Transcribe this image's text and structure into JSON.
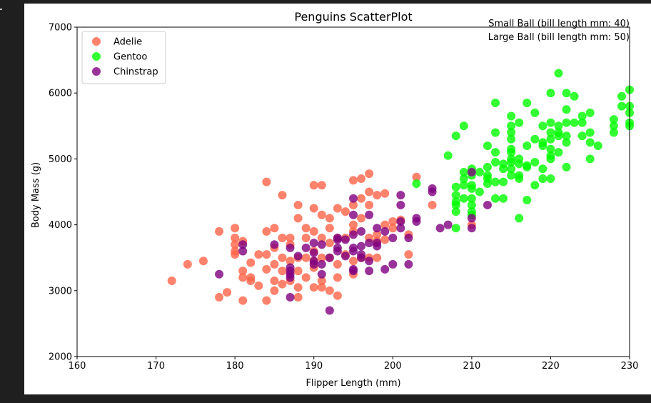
{
  "chart_data": {
    "type": "scatter",
    "title": "Penguins ScatterPlot",
    "xlabel": "Flipper Length (mm)",
    "ylabel": "Body Mass (g)",
    "xlim": [
      160,
      230
    ],
    "ylim": [
      2000,
      7000
    ],
    "xticks": [
      160,
      170,
      180,
      190,
      200,
      210,
      220,
      230
    ],
    "yticks": [
      2000,
      3000,
      4000,
      5000,
      6000,
      7000
    ],
    "grid": false,
    "legend_position": "top-left",
    "annotations": [
      "Small Ball (bill length mm: 40)",
      "Large Ball (bill length mm: 50)"
    ],
    "series": [
      {
        "name": "Adelie",
        "color": "#ff6347",
        "points": [
          [
            172,
            3150
          ],
          [
            174,
            3400
          ],
          [
            176,
            3450
          ],
          [
            178,
            2900
          ],
          [
            178,
            3900
          ],
          [
            179,
            2975
          ],
          [
            180,
            3550
          ],
          [
            180,
            3600
          ],
          [
            180,
            3700
          ],
          [
            180,
            3800
          ],
          [
            180,
            3950
          ],
          [
            181,
            2850
          ],
          [
            181,
            3200
          ],
          [
            181,
            3300
          ],
          [
            181,
            3750
          ],
          [
            182,
            3150
          ],
          [
            182,
            3200
          ],
          [
            182,
            3425
          ],
          [
            183,
            3075
          ],
          [
            183,
            3550
          ],
          [
            184,
            2850
          ],
          [
            184,
            3325
          ],
          [
            184,
            3550
          ],
          [
            184,
            3900
          ],
          [
            184,
            4650
          ],
          [
            185,
            3000
          ],
          [
            185,
            3150
          ],
          [
            185,
            3400
          ],
          [
            185,
            3650
          ],
          [
            185,
            3950
          ],
          [
            186,
            3100
          ],
          [
            186,
            3300
          ],
          [
            186,
            3500
          ],
          [
            186,
            3800
          ],
          [
            186,
            4450
          ],
          [
            187,
            3150
          ],
          [
            187,
            3450
          ],
          [
            187,
            3700
          ],
          [
            187,
            3800
          ],
          [
            188,
            2900
          ],
          [
            188,
            3050
          ],
          [
            188,
            3300
          ],
          [
            188,
            3500
          ],
          [
            188,
            4100
          ],
          [
            188,
            4300
          ],
          [
            189,
            3200
          ],
          [
            189,
            3500
          ],
          [
            189,
            3800
          ],
          [
            189,
            3950
          ],
          [
            190,
            3050
          ],
          [
            190,
            3350
          ],
          [
            190,
            3450
          ],
          [
            190,
            3600
          ],
          [
            190,
            3900
          ],
          [
            190,
            4250
          ],
          [
            190,
            4600
          ],
          [
            191,
            3050
          ],
          [
            191,
            3150
          ],
          [
            191,
            3500
          ],
          [
            191,
            3800
          ],
          [
            191,
            4150
          ],
          [
            191,
            4600
          ],
          [
            192,
            3000
          ],
          [
            192,
            3500
          ],
          [
            192,
            3725
          ],
          [
            192,
            3950
          ],
          [
            192,
            4100
          ],
          [
            193,
            2925
          ],
          [
            193,
            3200
          ],
          [
            193,
            3400
          ],
          [
            193,
            3800
          ],
          [
            193,
            4250
          ],
          [
            194,
            3550
          ],
          [
            194,
            3800
          ],
          [
            194,
            4200
          ],
          [
            195,
            3250
          ],
          [
            195,
            3450
          ],
          [
            195,
            3900
          ],
          [
            195,
            4000
          ],
          [
            195,
            4300
          ],
          [
            195,
            4675
          ],
          [
            196,
            3500
          ],
          [
            196,
            4100
          ],
          [
            196,
            4400
          ],
          [
            196,
            4700
          ],
          [
            197,
            3500
          ],
          [
            197,
            3800
          ],
          [
            197,
            4300
          ],
          [
            197,
            4500
          ],
          [
            197,
            4775
          ],
          [
            198,
            3500
          ],
          [
            198,
            3750
          ],
          [
            198,
            4450
          ],
          [
            198,
            3850
          ],
          [
            199,
            3775
          ],
          [
            199,
            4000
          ],
          [
            199,
            4475
          ],
          [
            200,
            3950
          ],
          [
            200,
            4050
          ],
          [
            201,
            4075
          ],
          [
            202,
            3550
          ],
          [
            202,
            3850
          ],
          [
            203,
            4725
          ],
          [
            205,
            4300
          ],
          [
            210,
            4000
          ]
        ]
      },
      {
        "name": "Gentoo",
        "color": "#00ff00",
        "points": [
          [
            203,
            4625
          ],
          [
            207,
            5050
          ],
          [
            208,
            3950
          ],
          [
            208,
            4200
          ],
          [
            208,
            4300
          ],
          [
            208,
            4350
          ],
          [
            208,
            4450
          ],
          [
            208,
            4575
          ],
          [
            208,
            5350
          ],
          [
            209,
            4400
          ],
          [
            209,
            4600
          ],
          [
            209,
            4700
          ],
          [
            209,
            4800
          ],
          [
            209,
            5500
          ],
          [
            210,
            4150
          ],
          [
            210,
            4200
          ],
          [
            210,
            4300
          ],
          [
            210,
            4400
          ],
          [
            210,
            4550
          ],
          [
            210,
            4600
          ],
          [
            210,
            4750
          ],
          [
            210,
            4850
          ],
          [
            211,
            4500
          ],
          [
            211,
            4800
          ],
          [
            212,
            4625
          ],
          [
            212,
            4700
          ],
          [
            212,
            4750
          ],
          [
            212,
            4875
          ],
          [
            212,
            5200
          ],
          [
            213,
            4400
          ],
          [
            213,
            4650
          ],
          [
            213,
            4950
          ],
          [
            213,
            5100
          ],
          [
            213,
            5400
          ],
          [
            213,
            5850
          ],
          [
            214,
            4400
          ],
          [
            214,
            4650
          ],
          [
            214,
            4850
          ],
          [
            214,
            4925
          ],
          [
            215,
            4750
          ],
          [
            215,
            4850
          ],
          [
            215,
            4950
          ],
          [
            215,
            5000
          ],
          [
            215,
            5100
          ],
          [
            215,
            5150
          ],
          [
            215,
            5300
          ],
          [
            215,
            5400
          ],
          [
            215,
            5500
          ],
          [
            215,
            5650
          ],
          [
            216,
            4100
          ],
          [
            216,
            4700
          ],
          [
            216,
            4750
          ],
          [
            216,
            4925
          ],
          [
            216,
            5000
          ],
          [
            216,
            5550
          ],
          [
            217,
            4375
          ],
          [
            217,
            4875
          ],
          [
            217,
            4900
          ],
          [
            217,
            5200
          ],
          [
            217,
            5850
          ],
          [
            218,
            4600
          ],
          [
            218,
            4950
          ],
          [
            218,
            5300
          ],
          [
            218,
            5700
          ],
          [
            219,
            4700
          ],
          [
            219,
            4850
          ],
          [
            219,
            5200
          ],
          [
            219,
            5250
          ],
          [
            219,
            5500
          ],
          [
            220,
            4700
          ],
          [
            220,
            5000
          ],
          [
            220,
            5050
          ],
          [
            220,
            5150
          ],
          [
            220,
            5300
          ],
          [
            220,
            5400
          ],
          [
            220,
            5550
          ],
          [
            220,
            6000
          ],
          [
            221,
            5100
          ],
          [
            221,
            5350
          ],
          [
            221,
            5400
          ],
          [
            221,
            5500
          ],
          [
            221,
            6300
          ],
          [
            222,
            4875
          ],
          [
            222,
            5250
          ],
          [
            222,
            5350
          ],
          [
            222,
            5550
          ],
          [
            222,
            5750
          ],
          [
            222,
            6000
          ],
          [
            223,
            5550
          ],
          [
            223,
            5950
          ],
          [
            224,
            5350
          ],
          [
            224,
            5550
          ],
          [
            224,
            5650
          ],
          [
            225,
            5000
          ],
          [
            225,
            5250
          ],
          [
            225,
            5400
          ],
          [
            225,
            5700
          ],
          [
            226,
            5200
          ],
          [
            228,
            5400
          ],
          [
            228,
            5500
          ],
          [
            228,
            5600
          ],
          [
            229,
            5800
          ],
          [
            229,
            5950
          ],
          [
            230,
            5500
          ],
          [
            230,
            5550
          ],
          [
            230,
            5700
          ],
          [
            230,
            5800
          ],
          [
            230,
            6050
          ]
        ]
      },
      {
        "name": "Chinstrap",
        "color": "#800080",
        "points": [
          [
            178,
            3250
          ],
          [
            181,
            3600
          ],
          [
            181,
            3700
          ],
          [
            185,
            3700
          ],
          [
            187,
            2900
          ],
          [
            187,
            3200
          ],
          [
            187,
            3250
          ],
          [
            187,
            3300
          ],
          [
            187,
            3350
          ],
          [
            187,
            3650
          ],
          [
            188,
            3525
          ],
          [
            189,
            3650
          ],
          [
            190,
            3400
          ],
          [
            190,
            3450
          ],
          [
            190,
            3575
          ],
          [
            190,
            3725
          ],
          [
            191,
            3250
          ],
          [
            191,
            3400
          ],
          [
            191,
            3700
          ],
          [
            192,
            2700
          ],
          [
            192,
            3500
          ],
          [
            193,
            3600
          ],
          [
            193,
            3650
          ],
          [
            193,
            3775
          ],
          [
            193,
            3800
          ],
          [
            194,
            3525
          ],
          [
            194,
            3775
          ],
          [
            195,
            3300
          ],
          [
            195,
            3325
          ],
          [
            195,
            3600
          ],
          [
            195,
            3650
          ],
          [
            195,
            3850
          ],
          [
            195,
            4150
          ],
          [
            195,
            4400
          ],
          [
            196,
            3500
          ],
          [
            196,
            3550
          ],
          [
            196,
            3675
          ],
          [
            196,
            3900
          ],
          [
            197,
            3300
          ],
          [
            197,
            3450
          ],
          [
            197,
            3725
          ],
          [
            197,
            4150
          ],
          [
            198,
            3675
          ],
          [
            198,
            3725
          ],
          [
            198,
            3950
          ],
          [
            199,
            3325
          ],
          [
            199,
            3900
          ],
          [
            200,
            3400
          ],
          [
            200,
            3800
          ],
          [
            201,
            3950
          ],
          [
            201,
            4050
          ],
          [
            201,
            4300
          ],
          [
            201,
            4450
          ],
          [
            202,
            3400
          ],
          [
            202,
            3800
          ],
          [
            203,
            4050
          ],
          [
            203,
            4100
          ],
          [
            205,
            4500
          ],
          [
            205,
            4550
          ],
          [
            206,
            3950
          ],
          [
            207,
            4000
          ],
          [
            210,
            3950
          ],
          [
            210,
            4100
          ],
          [
            210,
            4800
          ],
          [
            212,
            4300
          ]
        ]
      }
    ]
  }
}
